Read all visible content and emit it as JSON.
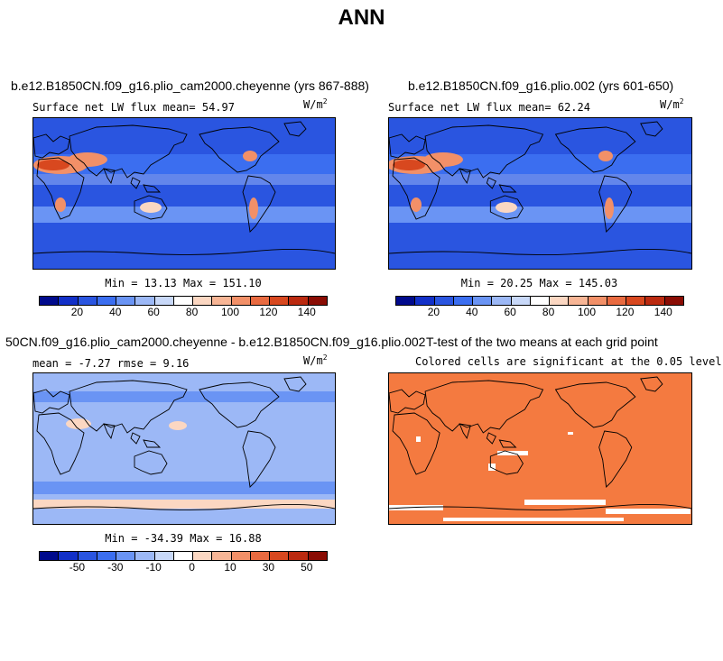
{
  "title": "ANN",
  "panels": {
    "p1": {
      "case_title": "b.e12.B1850CN.f09_g16.plio_cam2000.cheyenne (yrs 867-888)",
      "subtitle": "Surface net LW flux mean=  54.97",
      "units": "W/m",
      "units_exp": "2",
      "minmax": "Min =  13.13 Max = 151.10"
    },
    "p2": {
      "case_title": "b.e12.B1850CN.f09_g16.plio.002 (yrs 601-650)",
      "subtitle": "Surface net LW flux mean=  62.24",
      "units": "W/m",
      "units_exp": "2",
      "minmax": "Min =  20.25 Max = 145.03"
    },
    "p3": {
      "case_title": "50CN.f09_g16.plio_cam2000.cheyenne - b.e12.B1850CN.f09_g16.plio.002",
      "subtitle": "mean =  -7.27    rmse =   9.16",
      "units": "W/m",
      "units_exp": "2",
      "minmax": "Min = -34.39 Max =  16.88"
    },
    "p4": {
      "case_title": "T-test of the two means at each grid point",
      "subtitle": "Colored cells are significant at the 0.05 level"
    }
  },
  "colorbars": {
    "abs": {
      "colors": [
        "#000a8c",
        "#1230c8",
        "#2a55e0",
        "#3b6ef0",
        "#6a94f4",
        "#9cb8f6",
        "#c8d8f8",
        "#ffffff",
        "#fbd7c2",
        "#f7b595",
        "#f29068",
        "#e86a40",
        "#d8481f",
        "#bb2a10",
        "#8a0c04"
      ],
      "ticks": [
        "20",
        "40",
        "60",
        "80",
        "100",
        "120",
        "140"
      ]
    },
    "diff": {
      "colors": [
        "#000a8c",
        "#1230c8",
        "#2a55e0",
        "#3b6ef0",
        "#6a94f4",
        "#9cb8f6",
        "#c8d8f8",
        "#ffffff",
        "#fbd7c2",
        "#f7b595",
        "#f29068",
        "#e86a40",
        "#d8481f",
        "#bb2a10",
        "#8a0c04"
      ],
      "ticks": [
        "-50",
        "-30",
        "-10",
        "0",
        "10",
        "30",
        "50"
      ]
    }
  },
  "colors": {
    "ocean_strong": "#2a55e0",
    "ocean_mid": "#3b6ef0",
    "ocean_light": "#6a94f4",
    "ocean_pale": "#9cb8f6",
    "desert_hot": "#d8481f",
    "desert_warm": "#f29068",
    "desert_pale": "#fbd7c2",
    "diff_bg": "#9cb8f6",
    "diff_mid": "#6a94f4",
    "signif": "#f47a40",
    "coast": "#000000"
  }
}
